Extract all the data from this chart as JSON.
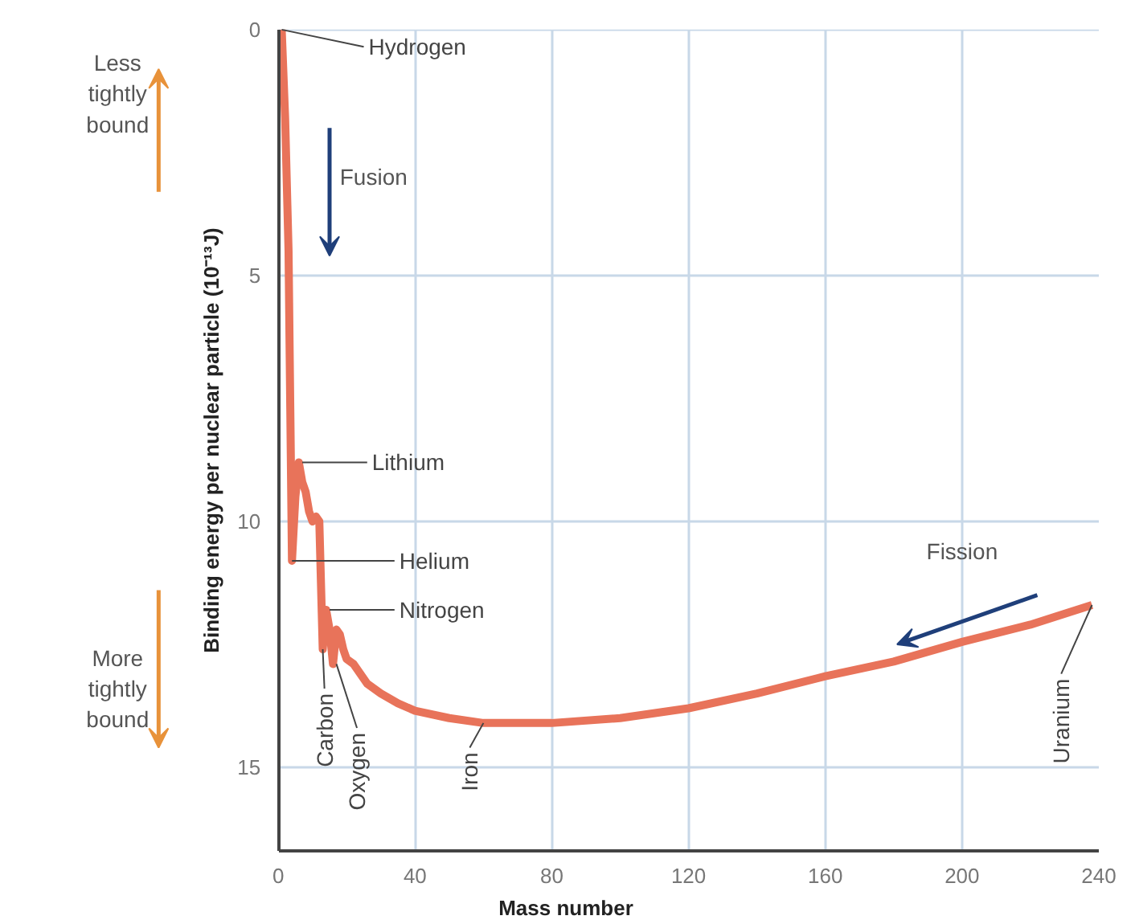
{
  "chart_data": {
    "type": "line",
    "xlabel": "Mass number",
    "ylabel": "Binding energy per nuclear particle (10⁻¹³J)",
    "x": [
      1,
      2,
      3,
      4,
      5,
      6,
      7,
      8,
      9,
      10,
      11,
      12,
      13,
      14,
      15,
      16,
      17,
      18,
      19,
      20,
      22,
      24,
      26,
      30,
      35,
      40,
      50,
      60,
      70,
      80,
      100,
      120,
      140,
      160,
      180,
      200,
      220,
      238
    ],
    "series": [
      {
        "color": "#e8735a",
        "values": [
          0,
          1.8,
          4.5,
          10.8,
          9.5,
          8.8,
          9.2,
          9.4,
          9.8,
          10.0,
          9.9,
          10.0,
          12.6,
          11.8,
          12.2,
          12.9,
          12.2,
          12.3,
          12.6,
          12.8,
          12.9,
          13.1,
          13.3,
          13.5,
          13.7,
          13.85,
          14.0,
          14.1,
          14.1,
          14.1,
          14.0,
          13.8,
          13.5,
          13.15,
          12.85,
          12.45,
          12.1,
          11.7
        ]
      }
    ],
    "xlim": [
      0,
      240
    ],
    "ylim": [
      16.7,
      0
    ],
    "xticks": [
      0,
      40,
      80,
      120,
      160,
      200,
      240
    ],
    "yticks": [
      0,
      5,
      10,
      15
    ],
    "grid": true,
    "line_style": "solid",
    "annotations": [
      {
        "text": "Hydrogen",
        "x": 1,
        "y": 0
      },
      {
        "text": "Lithium",
        "x": 7,
        "y": 8.8
      },
      {
        "text": "Helium",
        "x": 4,
        "y": 10.8
      },
      {
        "text": "Nitrogen",
        "x": 15,
        "y": 11.8
      },
      {
        "text": "Carbon",
        "x": 13,
        "y": 12.6
      },
      {
        "text": "Oxygen",
        "x": 17,
        "y": 12.9
      },
      {
        "text": "Iron",
        "x": 60,
        "y": 14.1
      },
      {
        "text": "Uranium",
        "x": 238,
        "y": 11.7
      },
      "Fusion",
      "Fission",
      "Less tightly bound",
      "More tightly bound"
    ]
  }
}
